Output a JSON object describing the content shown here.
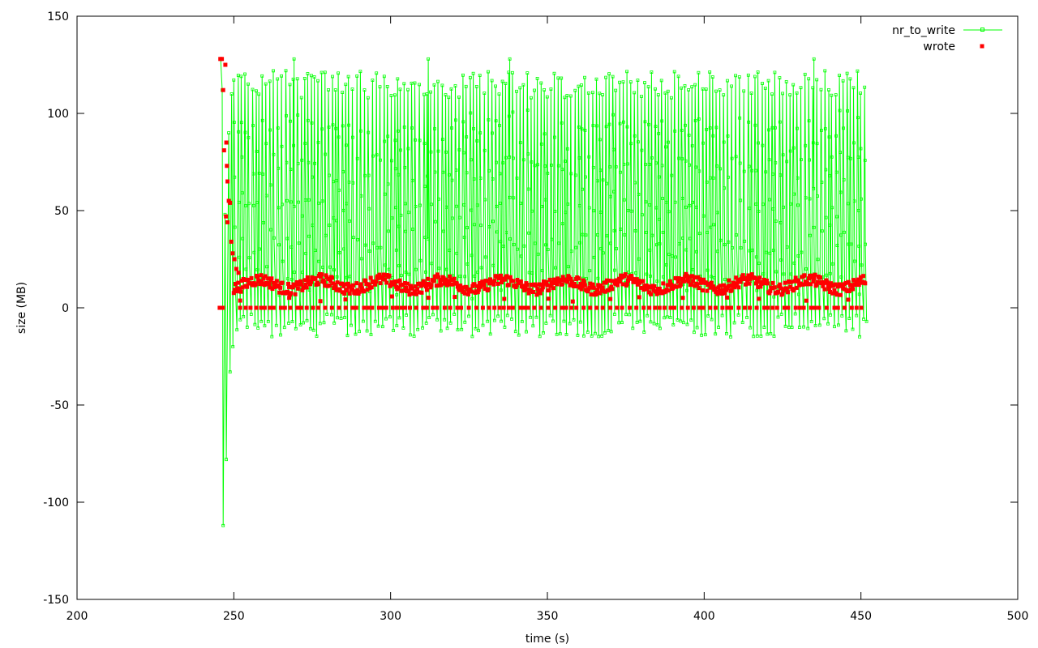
{
  "chart_data": {
    "type": "scatter",
    "xlabel": "time (s)",
    "ylabel": "size (MB)",
    "xlim": [
      200,
      500
    ],
    "ylim": [
      -150,
      150
    ],
    "x_ticks": [
      200,
      250,
      300,
      350,
      400,
      450,
      500
    ],
    "y_ticks": [
      -150,
      -100,
      -50,
      0,
      50,
      100,
      150
    ],
    "grid": false,
    "legend_position": "top-right",
    "series": [
      {
        "name": "nr_to_write",
        "style": "linespoints",
        "color": "#00ff00",
        "x_range": [
          245.5,
          451.5
        ],
        "oscillation_range_mb": [
          -15,
          122
        ],
        "startup_points": [
          {
            "x": 245.8,
            "y": 128
          },
          {
            "x": 246.3,
            "y": 112
          },
          {
            "x": 246.6,
            "y": -112
          },
          {
            "x": 247.2,
            "y": 48
          },
          {
            "x": 247.6,
            "y": -78
          },
          {
            "x": 248.4,
            "y": 90
          },
          {
            "x": 248.8,
            "y": -33
          },
          {
            "x": 249.3,
            "y": 110
          },
          {
            "x": 249.7,
            "y": -20
          }
        ],
        "spike_points": [
          {
            "x": 269.2,
            "y": 128
          },
          {
            "x": 312.0,
            "y": 128
          },
          {
            "x": 338.0,
            "y": 128
          },
          {
            "x": 435.0,
            "y": 128
          }
        ]
      },
      {
        "name": "wrote",
        "style": "points",
        "color": "#ff0000",
        "x_range": [
          245.5,
          451.5
        ],
        "typical_level_mb": 12,
        "zero_level_mb": 0,
        "startup_points": [
          {
            "x": 245.7,
            "y": 128
          },
          {
            "x": 246.2,
            "y": 128
          },
          {
            "x": 246.6,
            "y": 112
          },
          {
            "x": 246.9,
            "y": 81
          },
          {
            "x": 247.3,
            "y": 125
          },
          {
            "x": 247.6,
            "y": 85
          },
          {
            "x": 247.8,
            "y": 73
          },
          {
            "x": 248.0,
            "y": 65
          },
          {
            "x": 248.4,
            "y": 55
          },
          {
            "x": 248.8,
            "y": 54
          },
          {
            "x": 247.5,
            "y": 47
          },
          {
            "x": 248.0,
            "y": 44
          },
          {
            "x": 249.2,
            "y": 34
          },
          {
            "x": 249.6,
            "y": 28
          },
          {
            "x": 250.2,
            "y": 25
          },
          {
            "x": 250.8,
            "y": 20
          },
          {
            "x": 251.5,
            "y": 18
          },
          {
            "x": 245.5,
            "y": 0
          },
          {
            "x": 246.5,
            "y": 0
          }
        ]
      }
    ]
  }
}
